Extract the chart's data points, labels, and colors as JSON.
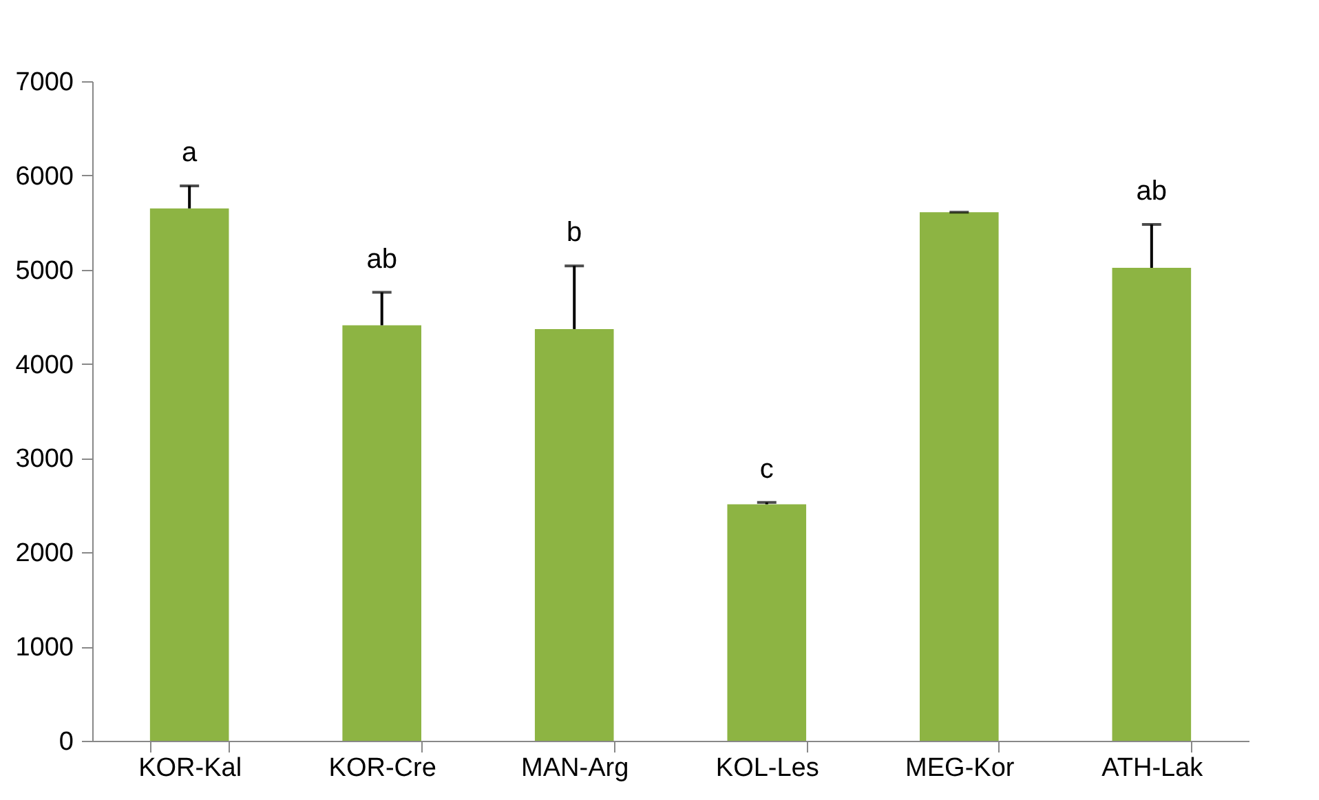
{
  "chart_data": {
    "type": "bar",
    "categories": [
      "KOR-Kal",
      "KOR-Cre",
      "MAN-Arg",
      "KOL-Les",
      "MEG-Kor",
      "ATH-Lak"
    ],
    "values": [
      5650,
      4410,
      4370,
      2510,
      5610,
      5020
    ],
    "errors": [
      [
        5650,
        5890
      ],
      [
        4410,
        4760
      ],
      [
        4370,
        5040
      ],
      [
        2510,
        2530
      ],
      [
        5610,
        5610
      ],
      [
        5020,
        5480
      ]
    ],
    "color": "#8db443",
    "ylim": [
      0,
      7000
    ],
    "yticks": [
      0,
      1000,
      2000,
      3000,
      4000,
      5000,
      6000,
      7000
    ],
    "grid": false,
    "value_labels": [
      "a",
      "ab",
      "b",
      "c",
      null,
      "ab"
    ]
  }
}
